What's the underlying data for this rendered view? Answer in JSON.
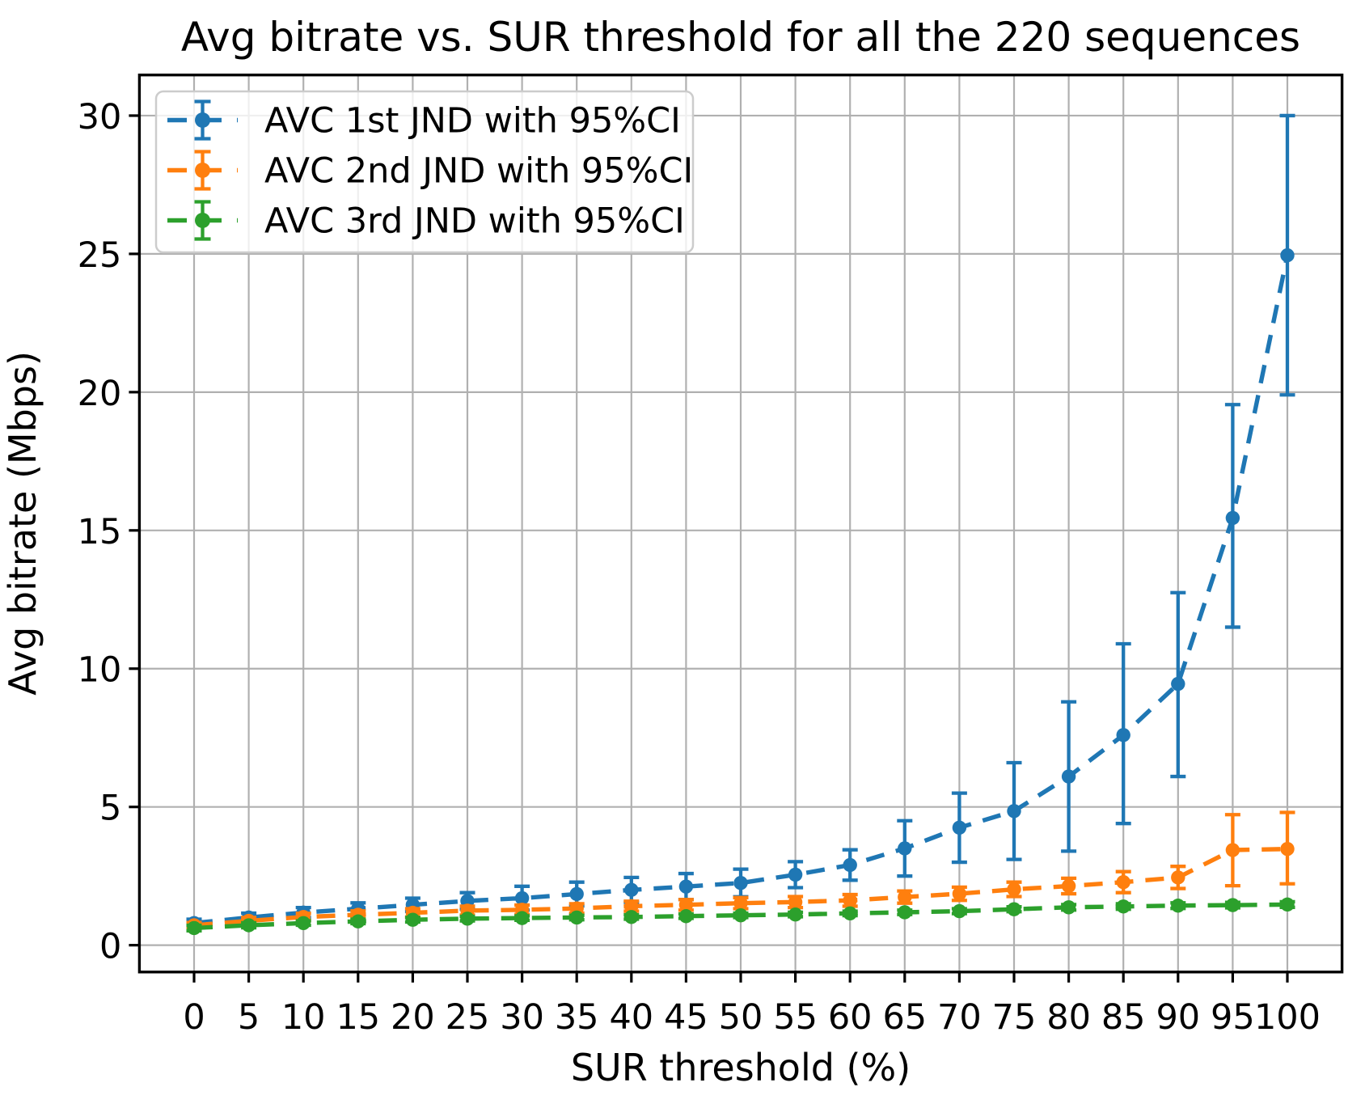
{
  "chart_data": {
    "type": "line",
    "title": "Avg bitrate vs. SUR threshold for all the 220 sequences",
    "xlabel": "SUR threshold (%)",
    "ylabel": "Avg bitrate (Mbps)",
    "grid": true,
    "legend_position": "upper left",
    "xlim": [
      -5,
      105
    ],
    "ylim": [
      -0.97,
      31.47
    ],
    "x_ticks": [
      0,
      5,
      10,
      15,
      20,
      25,
      30,
      35,
      40,
      45,
      50,
      55,
      60,
      65,
      70,
      75,
      80,
      85,
      90,
      95,
      100
    ],
    "y_ticks": [
      0,
      5,
      10,
      15,
      20,
      25,
      30
    ],
    "x": [
      0,
      5,
      10,
      15,
      20,
      25,
      30,
      35,
      40,
      45,
      50,
      55,
      60,
      65,
      70,
      75,
      80,
      85,
      90,
      95,
      100
    ],
    "series": [
      {
        "name": "AVC 1st JND with 95%CI",
        "color": "#1f77b4",
        "linestyle": "dashed",
        "marker": "circle",
        "values": [
          0.8,
          1.0,
          1.18,
          1.32,
          1.46,
          1.6,
          1.7,
          1.85,
          2.0,
          2.12,
          2.25,
          2.55,
          2.9,
          3.5,
          4.25,
          4.85,
          6.1,
          7.6,
          9.45,
          15.45,
          24.95
        ],
        "ci_low": [
          0.66,
          0.84,
          1.0,
          1.11,
          1.22,
          1.3,
          1.27,
          1.42,
          1.55,
          1.65,
          1.75,
          2.08,
          2.35,
          2.5,
          3.0,
          3.1,
          3.4,
          4.4,
          6.1,
          11.5,
          19.9
        ],
        "ci_high": [
          0.94,
          1.16,
          1.36,
          1.53,
          1.7,
          1.9,
          2.13,
          2.28,
          2.45,
          2.59,
          2.75,
          3.02,
          3.45,
          4.5,
          5.5,
          6.6,
          8.8,
          10.9,
          12.75,
          19.55,
          30.0
        ]
      },
      {
        "name": "AVC 2nd JND with 95%CI",
        "color": "#ff7f0e",
        "linestyle": "dashed",
        "marker": "circle",
        "values": [
          0.72,
          0.88,
          1.02,
          1.1,
          1.17,
          1.25,
          1.28,
          1.33,
          1.41,
          1.46,
          1.52,
          1.56,
          1.62,
          1.74,
          1.86,
          2.02,
          2.14,
          2.28,
          2.45,
          3.44,
          3.48
        ],
        "ci_low": [
          0.62,
          0.76,
          0.89,
          0.96,
          1.02,
          1.09,
          1.11,
          1.16,
          1.23,
          1.27,
          1.32,
          1.36,
          1.41,
          1.52,
          1.62,
          1.76,
          1.86,
          1.9,
          2.05,
          2.15,
          2.22
        ],
        "ci_high": [
          0.82,
          1.0,
          1.15,
          1.24,
          1.32,
          1.41,
          1.45,
          1.5,
          1.59,
          1.65,
          1.72,
          1.76,
          1.83,
          1.96,
          2.1,
          2.28,
          2.42,
          2.66,
          2.85,
          4.72,
          4.8
        ]
      },
      {
        "name": "AVC 3rd JND with 95%CI",
        "color": "#2ca02c",
        "linestyle": "dashed",
        "marker": "circle",
        "values": [
          0.62,
          0.72,
          0.8,
          0.86,
          0.92,
          0.96,
          0.98,
          1.0,
          1.02,
          1.05,
          1.08,
          1.11,
          1.15,
          1.19,
          1.23,
          1.3,
          1.37,
          1.4,
          1.43,
          1.45,
          1.47
        ],
        "ci_low": [
          0.52,
          0.63,
          0.72,
          0.78,
          0.84,
          0.88,
          0.9,
          0.92,
          0.94,
          0.97,
          1.0,
          1.03,
          1.07,
          1.11,
          1.14,
          1.21,
          1.27,
          1.3,
          1.33,
          1.35,
          1.37
        ],
        "ci_high": [
          0.72,
          0.81,
          0.88,
          0.94,
          1.0,
          1.04,
          1.06,
          1.08,
          1.1,
          1.13,
          1.16,
          1.19,
          1.23,
          1.27,
          1.32,
          1.39,
          1.47,
          1.5,
          1.53,
          1.55,
          1.57
        ]
      }
    ],
    "style": {
      "grid_color": "#b0b0b0",
      "spine_color": "#000000",
      "legend_border_color": "#cccccc",
      "legend_fill": "rgba(255,255,255,0.8)"
    }
  }
}
